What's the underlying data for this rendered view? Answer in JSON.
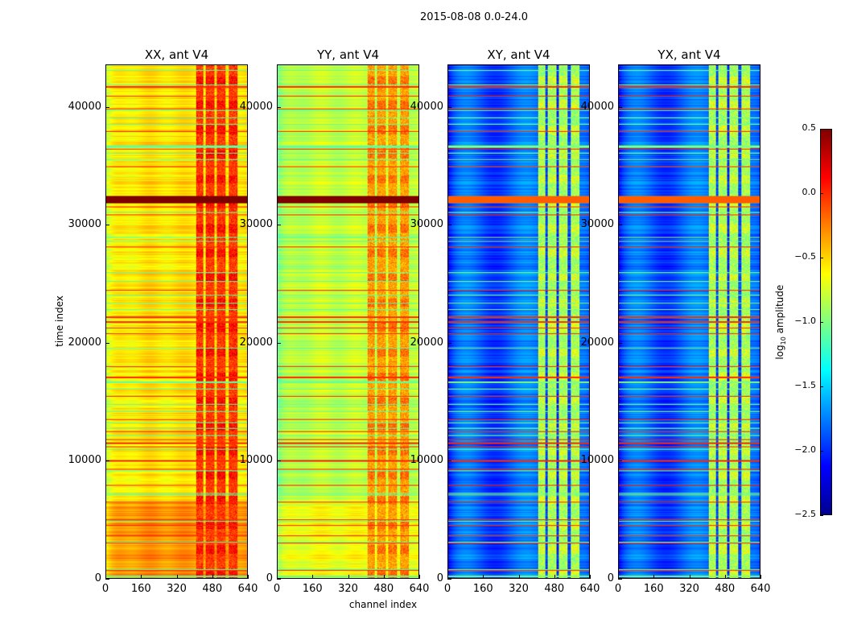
{
  "title": "2015-08-08 0.0-24.0",
  "chart_data": {
    "type": "heatmap",
    "suptitle": "2015-08-08 0.0-24.0",
    "xlabel": "channel index",
    "ylabel": "time index",
    "xlim": [
      0,
      640
    ],
    "ylim": [
      0,
      43600
    ],
    "xticks": [
      0,
      160,
      320,
      480,
      640
    ],
    "yticks": [
      0,
      10000,
      20000,
      30000,
      40000
    ],
    "colorbar": {
      "label_main": "log",
      "label_sub": "10",
      "label_rest": " amplitude",
      "colormap": "jet",
      "range": [
        -2.5,
        0.5
      ],
      "ticks": [
        "0.5",
        "0.0",
        "−0.5",
        "−1.0",
        "−1.5",
        "−2.0",
        "−2.5"
      ],
      "tick_values": [
        0.5,
        0.0,
        -0.5,
        -1.0,
        -1.5,
        -2.0,
        -2.5
      ]
    },
    "flagged_time_rows": [
      700,
      3000,
      3600,
      4500,
      5000,
      6500,
      7900,
      9300,
      10000,
      11200,
      11500,
      11800,
      12500,
      13500,
      15500,
      17100,
      18000,
      20800,
      21300,
      21800,
      22200,
      24500,
      28200,
      30900,
      31600,
      35000,
      36500,
      38000,
      39900,
      41000,
      41800
    ],
    "strong_band_time": [
      31900,
      32500
    ],
    "rfi_channel_ranges": [
      [
        405,
        440
      ],
      [
        450,
        490
      ],
      [
        500,
        540
      ],
      [
        555,
        595
      ]
    ],
    "panels": [
      {
        "title": "XX, ant V4",
        "base_level": -0.55,
        "rfi_level": -0.05,
        "flag_level": 0.0,
        "band_level": 0.5,
        "low_time_boost": 0.25
      },
      {
        "title": "YY, ant V4",
        "base_level": -0.8,
        "rfi_level": -0.35,
        "flag_level": 0.0,
        "band_level": 0.5,
        "low_time_boost": 0.15
      },
      {
        "title": "XY, ant V4",
        "base_level": -1.85,
        "rfi_level": -0.9,
        "flag_level": 0.0,
        "band_level": -0.15,
        "low_time_boost": 0.0
      },
      {
        "title": "YX, ant V4",
        "base_level": -1.85,
        "rfi_level": -0.9,
        "flag_level": 0.0,
        "band_level": -0.15,
        "low_time_boost": 0.0
      }
    ]
  }
}
